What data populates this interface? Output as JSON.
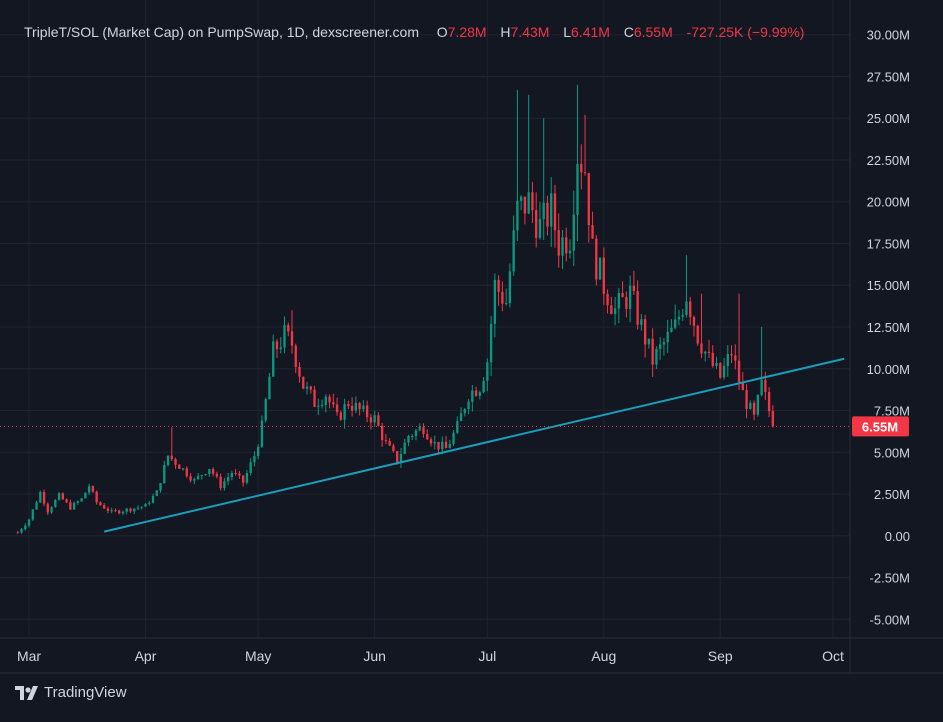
{
  "legend": {
    "title": "TripleT/SOL (Market Cap) on PumpSwap, 1D, dexscreener.com",
    "open_label": "O",
    "open": "7.28M",
    "high_label": "H",
    "high": "7.43M",
    "low_label": "L",
    "low": "6.41M",
    "close_label": "C",
    "close": "6.55M",
    "change": "-727.25K (−9.99%)"
  },
  "brand": {
    "name": "TradingView",
    "icon": "tradingview-logo-icon"
  },
  "colors": {
    "background": "#131722",
    "grid": "#1f2330",
    "axis_text": "#d1d4dc",
    "up": "#089981",
    "down": "#f23645",
    "trendline": "#1b9dbb",
    "price_line": "#f23645"
  },
  "chart_data": {
    "type": "candlestick",
    "x_start": "2025-02-25",
    "x_end": "2025-10-05",
    "xticks": [
      {
        "date": "2025-03-01",
        "label": "Mar"
      },
      {
        "date": "2025-04-01",
        "label": "Apr"
      },
      {
        "date": "2025-05-01",
        "label": "May"
      },
      {
        "date": "2025-06-01",
        "label": "Jun"
      },
      {
        "date": "2025-07-01",
        "label": "Jul"
      },
      {
        "date": "2025-08-01",
        "label": "Aug"
      },
      {
        "date": "2025-09-01",
        "label": "Sep"
      },
      {
        "date": "2025-10-01",
        "label": "Oct"
      }
    ],
    "ylim": [
      -6000000,
      31000000
    ],
    "yticks": [
      {
        "value": 30000000,
        "label": "30.00M"
      },
      {
        "value": 27500000,
        "label": "27.50M"
      },
      {
        "value": 25000000,
        "label": "25.00M"
      },
      {
        "value": 22500000,
        "label": "22.50M"
      },
      {
        "value": 20000000,
        "label": "20.00M"
      },
      {
        "value": 17500000,
        "label": "17.50M"
      },
      {
        "value": 15000000,
        "label": "15.00M"
      },
      {
        "value": 12500000,
        "label": "12.50M"
      },
      {
        "value": 10000000,
        "label": "10.00M"
      },
      {
        "value": 7500000,
        "label": "7.50M"
      },
      {
        "value": 5000000,
        "label": "5.00M"
      },
      {
        "value": 2500000,
        "label": "2.50M"
      },
      {
        "value": 0,
        "label": "0.00"
      },
      {
        "value": -2500000,
        "label": "-2.50M"
      },
      {
        "value": -5000000,
        "label": "-5.00M"
      }
    ],
    "grid": true,
    "last_price": {
      "value": 6550000,
      "label": "6.55M"
    },
    "trendline": {
      "start": {
        "date": "2025-03-21",
        "value": 250000
      },
      "end": {
        "date": "2025-10-04",
        "value": 10600000
      }
    },
    "close_path": [
      [
        "2025-02-26",
        0.2
      ],
      [
        "2025-03-01",
        1.0
      ],
      [
        "2025-03-04",
        2.6
      ],
      [
        "2025-03-06",
        1.5
      ],
      [
        "2025-03-09",
        2.4
      ],
      [
        "2025-03-12",
        1.7
      ],
      [
        "2025-03-15",
        2.2
      ],
      [
        "2025-03-17",
        3.0
      ],
      [
        "2025-03-19",
        2.0
      ],
      [
        "2025-03-23",
        1.4
      ],
      [
        "2025-03-28",
        1.6
      ],
      [
        "2025-04-01",
        1.8
      ],
      [
        "2025-04-04",
        2.6
      ],
      [
        "2025-04-07",
        4.8
      ],
      [
        "2025-04-10",
        4.2
      ],
      [
        "2025-04-14",
        3.3
      ],
      [
        "2025-04-18",
        4.1
      ],
      [
        "2025-04-21",
        3.0
      ],
      [
        "2025-04-24",
        3.8
      ],
      [
        "2025-04-27",
        3.2
      ],
      [
        "2025-04-30",
        4.8
      ],
      [
        "2025-05-02",
        6.5
      ],
      [
        "2025-05-05",
        11.0
      ],
      [
        "2025-05-08",
        12.0
      ],
      [
        "2025-05-10",
        11.5
      ],
      [
        "2025-05-13",
        9.0
      ],
      [
        "2025-05-16",
        8.0
      ],
      [
        "2025-05-19",
        8.5
      ],
      [
        "2025-05-22",
        7.0
      ],
      [
        "2025-05-25",
        8.0
      ],
      [
        "2025-05-28",
        7.5
      ],
      [
        "2025-06-01",
        7.0
      ],
      [
        "2025-06-04",
        5.5
      ],
      [
        "2025-06-07",
        4.5
      ],
      [
        "2025-06-10",
        6.0
      ],
      [
        "2025-06-14",
        6.5
      ],
      [
        "2025-06-17",
        5.5
      ],
      [
        "2025-06-20",
        5.2
      ],
      [
        "2025-06-23",
        6.5
      ],
      [
        "2025-06-26",
        8.5
      ],
      [
        "2025-06-29",
        9.0
      ],
      [
        "2025-07-01",
        10.5
      ],
      [
        "2025-07-03",
        15.0
      ],
      [
        "2025-07-06",
        14.0
      ],
      [
        "2025-07-09",
        19.5
      ],
      [
        "2025-07-12",
        20.0
      ],
      [
        "2025-07-15",
        18.5
      ],
      [
        "2025-07-18",
        19.5
      ],
      [
        "2025-07-20",
        17.5
      ],
      [
        "2025-07-23",
        18.0
      ],
      [
        "2025-07-25",
        23.0
      ],
      [
        "2025-07-27",
        22.0
      ],
      [
        "2025-07-29",
        17.0
      ],
      [
        "2025-08-01",
        15.0
      ],
      [
        "2025-08-04",
        13.5
      ],
      [
        "2025-08-08",
        14.5
      ],
      [
        "2025-08-11",
        12.5
      ],
      [
        "2025-08-14",
        10.5
      ],
      [
        "2025-08-17",
        11.5
      ],
      [
        "2025-08-20",
        12.5
      ],
      [
        "2025-08-23",
        14.5
      ],
      [
        "2025-08-26",
        12.0
      ],
      [
        "2025-08-29",
        10.5
      ],
      [
        "2025-09-01",
        9.5
      ],
      [
        "2025-09-04",
        11.0
      ],
      [
        "2025-09-07",
        8.5
      ],
      [
        "2025-09-10",
        7.0
      ],
      [
        "2025-09-12",
        9.0
      ],
      [
        "2025-09-14",
        7.5
      ],
      [
        "2025-09-15",
        6.55
      ]
    ],
    "spikes": [
      [
        "2025-07-09",
        26.7
      ],
      [
        "2025-07-12",
        26.4
      ],
      [
        "2025-07-16",
        25.0
      ],
      [
        "2025-07-25",
        27.0
      ],
      [
        "2025-07-27",
        25.2
      ],
      [
        "2025-05-10",
        13.5
      ],
      [
        "2025-08-23",
        16.8
      ],
      [
        "2025-08-27",
        14.5
      ],
      [
        "2025-09-06",
        14.5
      ],
      [
        "2025-09-12",
        12.5
      ],
      [
        "2025-04-08",
        6.5
      ]
    ],
    "bearish_candles": 110,
    "bullish_candles": 95
  }
}
